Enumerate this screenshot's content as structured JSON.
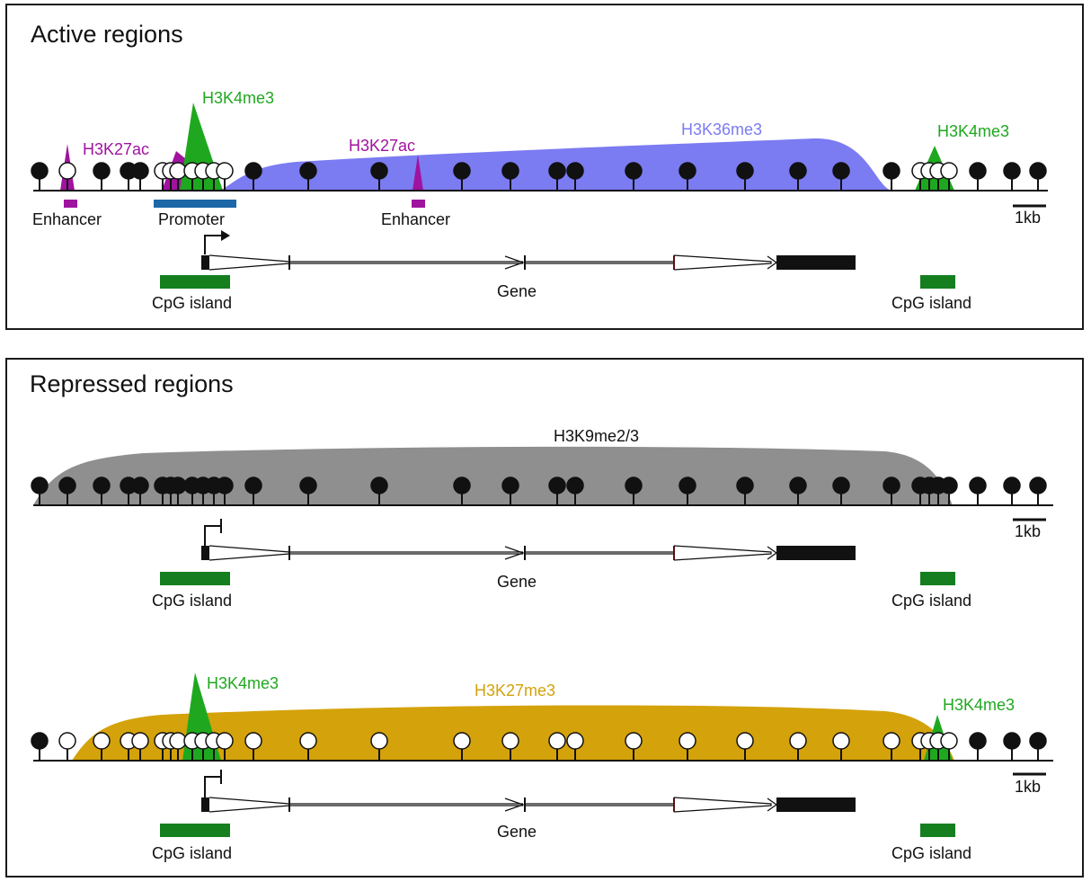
{
  "colors": {
    "h3k27ac": "#a0139f",
    "h3k4me3": "#1fa81f",
    "h3k36me3": "#7b7bf2",
    "h3k9me": "#8f8f8f",
    "h3k27me3": "#d4a20a",
    "cpg_island": "#157f1f",
    "promoter": "#1b67a8",
    "methylated": "#111111",
    "unmethylated": "#ffffff"
  },
  "panels": {
    "active": {
      "title": "Active regions",
      "marks": {
        "h3k27ac_left": "H3K27ac",
        "h3k4me3_left": "H3K4me3",
        "h3k27ac_mid": "H3K27ac",
        "h3k36me3": "H3K36me3",
        "h3k4me3_right": "H3K4me3"
      },
      "features": {
        "enhancer_left": "Enhancer",
        "promoter": "Promoter",
        "enhancer_mid": "Enhancer"
      },
      "scale": "1kb",
      "gene": "Gene",
      "cpg_left": "CpG island",
      "cpg_right": "CpG island"
    },
    "repressed": {
      "title": "Repressed regions",
      "track1": {
        "mark": "H3K9me2/3",
        "scale": "1kb",
        "gene": "Gene",
        "cpg_left": "CpG island",
        "cpg_right": "CpG island"
      },
      "track2": {
        "mark_h3k4me3_left": "H3K4me3",
        "mark_h3k27me3": "H3K27me3",
        "mark_h3k4me3_right": "H3K4me3",
        "scale": "1kb",
        "gene": "Gene",
        "cpg_left": "CpG island",
        "cpg_right": "CpG island"
      }
    }
  }
}
